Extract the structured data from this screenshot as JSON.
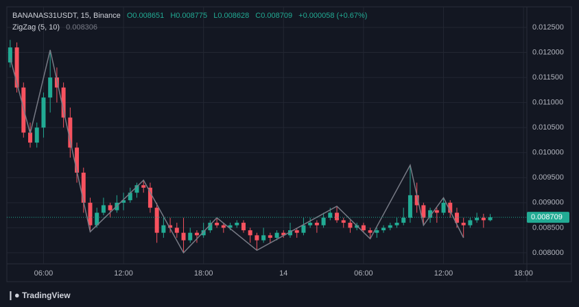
{
  "chart_data": {
    "type": "candlestick",
    "title": "BANANAS31USDT, 15, Binance",
    "ohlc_header": [
      "O0.008651",
      "H0.008775",
      "L0.008628",
      "C0.008709",
      "+0.000058 (+0.67%)"
    ],
    "indicator": {
      "name": "ZigZag (5, 10)",
      "value_label": "0.008306",
      "color": "#787b86",
      "vertex_index": [
        0,
        3,
        6,
        12,
        20,
        26,
        31,
        37,
        49,
        54,
        60,
        62,
        65,
        68
      ],
      "values": [
        0.01189,
        0.01038,
        0.01205,
        0.00842,
        0.00945,
        0.008,
        0.0087,
        0.00805,
        0.00893,
        0.00828,
        0.00975,
        0.00855,
        0.0091,
        0.0083
      ]
    },
    "categories": [
      null,
      null,
      null,
      null,
      null,
      "06:00",
      null,
      null,
      null,
      null,
      null,
      null,
      null,
      null,
      null,
      null,
      null,
      "12:00",
      null,
      null,
      null,
      null,
      null,
      null,
      null,
      null,
      null,
      null,
      null,
      "18:00",
      null,
      null,
      null,
      null,
      null,
      null,
      null,
      null,
      null,
      null,
      null,
      "14",
      null,
      null,
      null,
      null,
      null,
      null,
      null,
      null,
      null,
      null,
      null,
      "06:00",
      null,
      null,
      null,
      null,
      null,
      null,
      null,
      null,
      null,
      null,
      null,
      "12:00",
      null,
      null,
      null,
      null,
      null,
      null,
      null,
      null,
      null,
      null,
      null,
      "18:00"
    ],
    "open": [
      0.0118,
      0.0121,
      0.0113,
      0.0104,
      0.0102,
      0.0105,
      0.0111,
      0.0115,
      0.0113,
      0.0107,
      0.0101,
      0.0096,
      0.009,
      0.00855,
      0.0088,
      0.00895,
      0.00885,
      0.009,
      0.00905,
      0.0092,
      0.00935,
      0.0093,
      0.0089,
      0.0084,
      0.00855,
      0.0085,
      0.0084,
      0.00825,
      0.0084,
      0.00835,
      0.00845,
      0.0086,
      0.00855,
      0.0085,
      0.00855,
      0.0086,
      0.00845,
      0.00835,
      0.00825,
      0.00835,
      0.0083,
      0.0084,
      0.00835,
      0.00845,
      0.0084,
      0.00855,
      0.0086,
      0.00855,
      0.0087,
      0.0088,
      0.00865,
      0.0086,
      0.0085,
      0.00855,
      0.00845,
      0.0084,
      0.00845,
      0.0085,
      0.00855,
      0.0086,
      0.0087,
      0.00915,
      0.00895,
      0.0087,
      0.00885,
      0.0088,
      0.009,
      0.0088,
      0.0086,
      0.00855,
      0.00865,
      0.0087,
      0.008651,
      null,
      null,
      null,
      null,
      null
    ],
    "high": [
      0.01225,
      0.0122,
      0.0114,
      0.0106,
      0.0106,
      0.0112,
      0.01205,
      0.0117,
      0.0114,
      0.0109,
      0.0102,
      0.0097,
      0.0091,
      0.0089,
      0.0091,
      0.009,
      0.00915,
      0.0092,
      0.0093,
      0.0094,
      0.00945,
      0.0094,
      0.009,
      0.0087,
      0.0087,
      0.0086,
      0.0087,
      0.0085,
      0.00845,
      0.0086,
      0.00865,
      0.0087,
      0.0086,
      0.0086,
      0.00865,
      0.00865,
      0.0085,
      0.0084,
      0.0085,
      0.0084,
      0.00845,
      0.00845,
      0.0086,
      0.0085,
      0.0087,
      0.0087,
      0.00865,
      0.0088,
      0.0089,
      0.00893,
      0.0087,
      0.00865,
      0.0086,
      0.0086,
      0.0085,
      0.0085,
      0.00855,
      0.0086,
      0.0087,
      0.0089,
      0.00975,
      0.0094,
      0.009,
      0.0089,
      0.0089,
      0.0091,
      0.00905,
      0.0089,
      0.0087,
      0.0087,
      0.0088,
      0.00878,
      0.008775,
      null,
      null,
      null,
      null,
      null
    ],
    "low": [
      0.0117,
      0.0112,
      0.0103,
      0.0101,
      0.0101,
      0.0103,
      0.0108,
      0.011,
      0.0105,
      0.0099,
      0.0094,
      0.0088,
      0.00842,
      0.0085,
      0.00875,
      0.0087,
      0.0088,
      0.00885,
      0.009,
      0.0091,
      0.0092,
      0.0088,
      0.0082,
      0.0083,
      0.0084,
      0.0083,
      0.008,
      0.0082,
      0.0082,
      0.0083,
      0.0084,
      0.0085,
      0.0084,
      0.00845,
      0.0085,
      0.0084,
      0.0082,
      0.00805,
      0.0082,
      0.0082,
      0.00825,
      0.0083,
      0.0083,
      0.0083,
      0.00835,
      0.0085,
      0.0084,
      0.0085,
      0.00865,
      0.0086,
      0.0085,
      0.0084,
      0.00845,
      0.0084,
      0.00828,
      0.0083,
      0.0084,
      0.00845,
      0.0085,
      0.00855,
      0.0086,
      0.0088,
      0.00855,
      0.0086,
      0.0086,
      0.00875,
      0.0087,
      0.0085,
      0.0083,
      0.0085,
      0.0086,
      0.0085,
      0.008628,
      null,
      null,
      null,
      null,
      null
    ],
    "close": [
      0.0121,
      0.0113,
      0.0104,
      0.0102,
      0.0105,
      0.0111,
      0.0115,
      0.0113,
      0.0107,
      0.0101,
      0.0096,
      0.009,
      0.00855,
      0.0088,
      0.00895,
      0.00885,
      0.009,
      0.00905,
      0.0092,
      0.00935,
      0.0093,
      0.0089,
      0.0084,
      0.00855,
      0.0085,
      0.0084,
      0.00825,
      0.0084,
      0.00835,
      0.00845,
      0.0086,
      0.00855,
      0.0085,
      0.00855,
      0.0086,
      0.00845,
      0.00835,
      0.00825,
      0.00835,
      0.0083,
      0.0084,
      0.00835,
      0.00845,
      0.0084,
      0.00855,
      0.0086,
      0.00855,
      0.0087,
      0.0088,
      0.00865,
      0.0086,
      0.0085,
      0.00855,
      0.00845,
      0.0084,
      0.00845,
      0.0085,
      0.00855,
      0.0086,
      0.0087,
      0.00915,
      0.00895,
      0.0087,
      0.00885,
      0.0088,
      0.009,
      0.0088,
      0.0086,
      0.00855,
      0.00865,
      0.0087,
      0.00865,
      0.008709,
      null,
      null,
      null,
      null,
      null
    ],
    "up_color": "#22ab94",
    "down_color": "#f7525f",
    "last_price": {
      "value": 0.008709,
      "label": "0.008709"
    },
    "ylim": [
      0.00778,
      0.01291
    ],
    "yticks": [
      {
        "value": 0.008,
        "label": "0.008000"
      },
      {
        "value": 0.0085,
        "label": "0.008500"
      },
      {
        "value": 0.009,
        "label": "0.009000"
      },
      {
        "value": 0.0095,
        "label": "0.009500"
      },
      {
        "value": 0.01,
        "label": "0.010000"
      },
      {
        "value": 0.0105,
        "label": "0.010500"
      },
      {
        "value": 0.011,
        "label": "0.011000"
      },
      {
        "value": 0.0115,
        "label": "0.011500"
      },
      {
        "value": 0.012,
        "label": "0.012000"
      },
      {
        "value": 0.0125,
        "label": "0.012500"
      }
    ],
    "grid": true,
    "brand": "TradingView"
  }
}
